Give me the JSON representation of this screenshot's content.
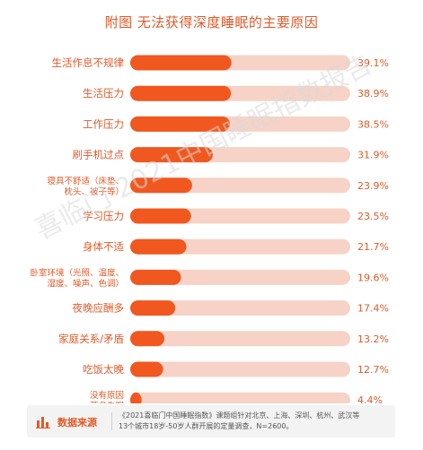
{
  "title": "附图 无法获得深度睡眠的主要原因",
  "watermark": "喜临门 2021中国睡眠指数报告",
  "colors": {
    "accent": "#e15a2a",
    "bar": "#f0581f",
    "track": "#f6d3c6"
  },
  "chart_data": {
    "type": "bar",
    "orientation": "horizontal",
    "title": "附图 无法获得深度睡眠的主要原因",
    "categories": [
      "生活作息不规律",
      "生活压力",
      "工作压力",
      "刷手机过点",
      "寝具不舒适（床垫、\n枕头、被子等）",
      "学习压力",
      "身体不适",
      "卧室环境（光照、温度、\n湿度、噪声、色调）",
      "夜晚应酬多",
      "家庭关系/矛盾",
      "吃饭太晚",
      "没有原因\n莫名失眠"
    ],
    "values": [
      39.1,
      38.9,
      38.5,
      31.9,
      23.9,
      23.5,
      21.7,
      19.6,
      17.4,
      13.2,
      12.7,
      4.4
    ],
    "value_labels": [
      "39.1%",
      "38.9%",
      "38.5%",
      "31.9%",
      "23.9%",
      "23.5%",
      "21.7%",
      "19.6%",
      "17.4%",
      "13.2%",
      "12.7%",
      "4.4%"
    ],
    "xlim": [
      0,
      85
    ],
    "grid": false,
    "legend": "none"
  },
  "source": {
    "label": "数据来源",
    "text": "《2021喜临门中国睡眠指数》课题组针对北京、上海、深圳、杭州、武汉等\n13个城市18岁-50岁人群开展的定量调查，N=2600。",
    "icon": "bar-chart-icon"
  }
}
